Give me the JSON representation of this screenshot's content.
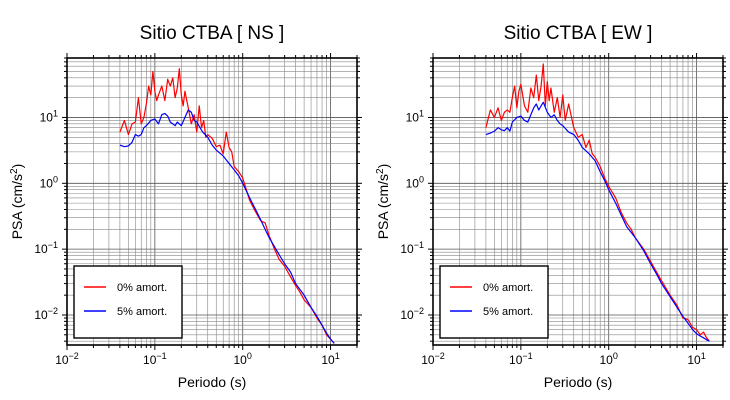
{
  "chart_data": [
    {
      "type": "line",
      "title": "Sitio CTBA [ NS ]",
      "xlabel": "Periodo (s)",
      "ylabel_main": "PSA (cm/s",
      "ylabel_sup": "2",
      "ylabel_tail": ")",
      "xscale": "log",
      "yscale": "log",
      "xlim": [
        0.01,
        20
      ],
      "ylim": [
        0.0035,
        80
      ],
      "grid": true,
      "legend_position": "bottom-left",
      "x_ticks": [
        {
          "base": "10",
          "exp": "−2"
        },
        {
          "base": "10",
          "exp": "−1"
        },
        {
          "base": "10",
          "exp": "0"
        },
        {
          "base": "10",
          "exp": "1"
        }
      ],
      "y_ticks": [
        {
          "base": "10",
          "exp": "−2"
        },
        {
          "base": "10",
          "exp": "−1"
        },
        {
          "base": "10",
          "exp": "0"
        },
        {
          "base": "10",
          "exp": "1"
        }
      ],
      "series": [
        {
          "name": "0% amort.",
          "color": "#ff0000",
          "x": [
            0.04,
            0.045,
            0.05,
            0.055,
            0.06,
            0.065,
            0.07,
            0.075,
            0.08,
            0.085,
            0.09,
            0.095,
            0.1,
            0.105,
            0.11,
            0.12,
            0.13,
            0.14,
            0.15,
            0.16,
            0.17,
            0.18,
            0.19,
            0.2,
            0.21,
            0.22,
            0.24,
            0.26,
            0.28,
            0.3,
            0.32,
            0.34,
            0.36,
            0.38,
            0.4,
            0.45,
            0.5,
            0.55,
            0.6,
            0.65,
            0.7,
            0.75,
            0.8,
            0.9,
            1.0,
            1.1,
            1.2,
            1.4,
            1.6,
            1.8,
            2.0,
            2.3,
            2.6,
            3.0,
            3.5,
            4.0,
            4.5,
            5.0,
            6.0,
            7.0,
            8.0,
            9.0,
            10.0,
            11.0
          ],
          "y": [
            6,
            9,
            5.5,
            8,
            8.5,
            20,
            8,
            10,
            16,
            30,
            22,
            50,
            25,
            18,
            22,
            30,
            18,
            38,
            30,
            40,
            20,
            28,
            55,
            22,
            15,
            25,
            14,
            8,
            11,
            6,
            15,
            7,
            9,
            5,
            5.5,
            4.8,
            3.6,
            3.8,
            2.8,
            6,
            3.5,
            3,
            1.8,
            1.5,
            1.2,
            0.8,
            0.55,
            0.37,
            0.27,
            0.25,
            0.16,
            0.1,
            0.07,
            0.055,
            0.038,
            0.028,
            0.022,
            0.017,
            0.013,
            0.009,
            0.007,
            0.005,
            0.0043,
            0.0037
          ]
        },
        {
          "name": "5% amort.",
          "color": "#0000ff",
          "x": [
            0.04,
            0.045,
            0.05,
            0.055,
            0.06,
            0.065,
            0.07,
            0.075,
            0.08,
            0.09,
            0.1,
            0.11,
            0.12,
            0.13,
            0.14,
            0.15,
            0.16,
            0.17,
            0.18,
            0.2,
            0.22,
            0.24,
            0.26,
            0.28,
            0.3,
            0.35,
            0.4,
            0.45,
            0.5,
            0.6,
            0.7,
            0.8,
            0.9,
            1.0,
            1.2,
            1.4,
            1.6,
            1.8,
            2.0,
            2.5,
            3.0,
            3.5,
            4.0,
            5.0,
            6.0,
            7.0,
            8.0,
            9.0,
            10.0,
            11.0
          ],
          "y": [
            3.8,
            3.6,
            3.7,
            4.2,
            5.5,
            5.2,
            5.5,
            7,
            7.5,
            9,
            9.5,
            8,
            11,
            11.5,
            10.5,
            8.5,
            8,
            7.5,
            8.5,
            7.5,
            10,
            13,
            12,
            9,
            8.5,
            6,
            5,
            3.8,
            3.2,
            2.6,
            2,
            1.6,
            1.3,
            1.0,
            0.6,
            0.4,
            0.28,
            0.2,
            0.15,
            0.09,
            0.06,
            0.045,
            0.03,
            0.02,
            0.013,
            0.0095,
            0.007,
            0.0053,
            0.0043,
            0.0037
          ]
        }
      ]
    },
    {
      "type": "line",
      "title": "Sitio CTBA [ EW ]",
      "xlabel": "Periodo (s)",
      "ylabel_main": "PSA (cm/s",
      "ylabel_sup": "2",
      "ylabel_tail": ")",
      "xscale": "log",
      "yscale": "log",
      "xlim": [
        0.01,
        20
      ],
      "ylim": [
        0.0035,
        80
      ],
      "grid": true,
      "legend_position": "bottom-left",
      "x_ticks": [
        {
          "base": "10",
          "exp": "−2"
        },
        {
          "base": "10",
          "exp": "−1"
        },
        {
          "base": "10",
          "exp": "0"
        },
        {
          "base": "10",
          "exp": "1"
        }
      ],
      "y_ticks": [
        {
          "base": "10",
          "exp": "−2"
        },
        {
          "base": "10",
          "exp": "−1"
        },
        {
          "base": "10",
          "exp": "0"
        },
        {
          "base": "10",
          "exp": "1"
        }
      ],
      "series": [
        {
          "name": "0% amort.",
          "color": "#ff0000",
          "x": [
            0.04,
            0.045,
            0.05,
            0.055,
            0.06,
            0.065,
            0.07,
            0.075,
            0.08,
            0.085,
            0.09,
            0.095,
            0.1,
            0.11,
            0.12,
            0.13,
            0.14,
            0.15,
            0.16,
            0.17,
            0.18,
            0.19,
            0.2,
            0.21,
            0.22,
            0.24,
            0.26,
            0.28,
            0.3,
            0.32,
            0.35,
            0.4,
            0.45,
            0.5,
            0.55,
            0.6,
            0.65,
            0.7,
            0.8,
            0.9,
            1.0,
            1.2,
            1.4,
            1.6,
            1.8,
            2.0,
            2.5,
            3.0,
            3.5,
            4.0,
            5.0,
            6.0,
            7.0,
            8.0,
            9.0,
            10.0,
            11.0,
            12.0,
            13.0,
            14.0
          ],
          "y": [
            7,
            13,
            10,
            14,
            9,
            12,
            13,
            12,
            20,
            30,
            14,
            25,
            32,
            15,
            12,
            28,
            20,
            44,
            18,
            30,
            65,
            15,
            35,
            18,
            28,
            12,
            20,
            10,
            22,
            9,
            16,
            7,
            5,
            5.5,
            3.5,
            4.5,
            2.8,
            2.5,
            1.8,
            1.2,
            0.9,
            0.6,
            0.35,
            0.25,
            0.2,
            0.15,
            0.1,
            0.065,
            0.045,
            0.033,
            0.02,
            0.014,
            0.009,
            0.0085,
            0.0065,
            0.006,
            0.005,
            0.0055,
            0.0045,
            0.004
          ]
        },
        {
          "name": "5% amort.",
          "color": "#0000ff",
          "x": [
            0.04,
            0.045,
            0.05,
            0.055,
            0.06,
            0.065,
            0.07,
            0.075,
            0.08,
            0.09,
            0.1,
            0.11,
            0.12,
            0.13,
            0.14,
            0.15,
            0.16,
            0.17,
            0.18,
            0.2,
            0.22,
            0.24,
            0.26,
            0.28,
            0.3,
            0.35,
            0.4,
            0.45,
            0.5,
            0.6,
            0.7,
            0.8,
            0.9,
            1.0,
            1.2,
            1.4,
            1.6,
            1.8,
            2.0,
            2.5,
            3.0,
            3.5,
            4.0,
            5.0,
            6.0,
            7.0,
            8.0,
            9.0,
            10.0,
            11.0,
            12.0,
            13.0,
            14.0
          ],
          "y": [
            5.5,
            5.8,
            6.2,
            7,
            6.5,
            6.3,
            7,
            6.2,
            8.5,
            10,
            10.5,
            9,
            8.5,
            11,
            14,
            16,
            13,
            15,
            17,
            12,
            10,
            11,
            9,
            8,
            7.5,
            6,
            5.5,
            4.5,
            3.5,
            2.8,
            2.2,
            1.5,
            1.1,
            0.8,
            0.5,
            0.32,
            0.22,
            0.18,
            0.15,
            0.095,
            0.06,
            0.042,
            0.03,
            0.019,
            0.013,
            0.0095,
            0.0075,
            0.006,
            0.0052,
            0.0048,
            0.0045,
            0.0042,
            0.004
          ]
        }
      ]
    }
  ]
}
